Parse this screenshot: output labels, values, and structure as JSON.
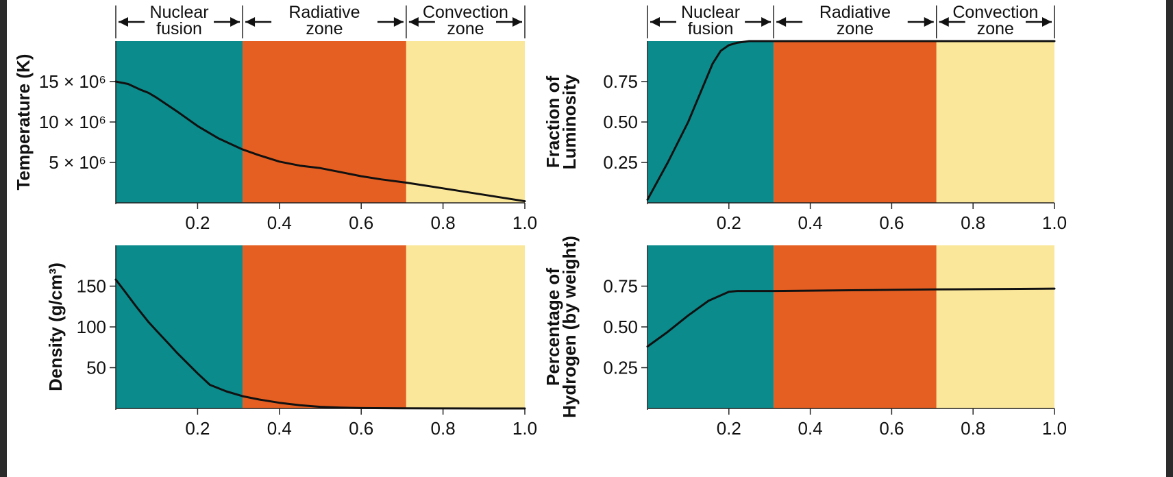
{
  "zones": {
    "labels": [
      [
        "Nuclear",
        "fusion"
      ],
      [
        "Radiative",
        "zone"
      ],
      [
        "Convection",
        "zone"
      ]
    ],
    "boundaries": [
      0,
      0.31,
      0.71,
      1.0
    ],
    "colors": [
      "#0b8b8c",
      "#e55f22",
      "#fbe79a"
    ]
  },
  "chart_data": [
    {
      "id": "temperature",
      "type": "line",
      "ylabel": [
        "Temperature (K)"
      ],
      "xlim": [
        0,
        1.0
      ],
      "ylim": [
        0,
        20000000
      ],
      "xticks": [
        0.2,
        0.4,
        0.6,
        0.8,
        1.0
      ],
      "xtick_labels": [
        "0.2",
        "0.4",
        "0.6",
        "0.8",
        "1.0"
      ],
      "yticks": [
        5000000,
        10000000,
        15000000
      ],
      "ytick_labels": [
        "5 × 10⁶",
        "10 × 10⁶",
        "15 × 10⁶"
      ],
      "x": [
        0,
        0.03,
        0.06,
        0.08,
        0.1,
        0.15,
        0.2,
        0.25,
        0.31,
        0.35,
        0.4,
        0.45,
        0.5,
        0.55,
        0.6,
        0.65,
        0.71,
        0.8,
        0.9,
        1.0
      ],
      "y": [
        15000000,
        14700000,
        14000000,
        13600000,
        13000000,
        11300000,
        9500000,
        8000000,
        6600000,
        5900000,
        5100000,
        4600000,
        4300000,
        3800000,
        3300000,
        2900000,
        2500000,
        1800000,
        1000000,
        200000
      ]
    },
    {
      "id": "luminosity",
      "type": "line",
      "ylabel": [
        "Fraction of",
        "Luminosity"
      ],
      "xlim": [
        0,
        1.0
      ],
      "ylim": [
        0,
        1.0
      ],
      "xticks": [
        0.2,
        0.4,
        0.6,
        0.8,
        1.0
      ],
      "xtick_labels": [
        "0.2",
        "0.4",
        "0.6",
        "0.8",
        "1.0"
      ],
      "yticks": [
        0.25,
        0.5,
        0.75
      ],
      "ytick_labels": [
        "0.25",
        "0.50",
        "0.75"
      ],
      "x": [
        0,
        0.05,
        0.1,
        0.13,
        0.16,
        0.18,
        0.2,
        0.22,
        0.25,
        0.31,
        0.5,
        0.71,
        1.0
      ],
      "y": [
        0.02,
        0.25,
        0.5,
        0.68,
        0.86,
        0.94,
        0.975,
        0.99,
        1.0,
        1.0,
        1.0,
        1.0,
        1.0
      ]
    },
    {
      "id": "density",
      "type": "line",
      "ylabel": [
        "Density (g/cm³)"
      ],
      "xlim": [
        0,
        1.0
      ],
      "ylim": [
        0,
        200
      ],
      "xticks": [
        0.2,
        0.4,
        0.6,
        0.8,
        1.0
      ],
      "xtick_labels": [
        "0.2",
        "0.4",
        "0.6",
        "0.8",
        "1.0"
      ],
      "yticks": [
        50,
        100,
        150
      ],
      "ytick_labels": [
        "50",
        "100",
        "150"
      ],
      "x": [
        0,
        0.02,
        0.05,
        0.08,
        0.1,
        0.13,
        0.15,
        0.18,
        0.2,
        0.23,
        0.27,
        0.31,
        0.35,
        0.4,
        0.45,
        0.5,
        0.55,
        0.6,
        0.7,
        0.8,
        0.9,
        1.0
      ],
      "y": [
        158,
        145,
        125,
        106,
        95,
        79,
        68,
        53,
        43,
        29,
        21,
        15,
        11,
        7,
        4,
        2,
        1,
        0.5,
        0.2,
        0.1,
        0,
        0
      ]
    },
    {
      "id": "hydrogen",
      "type": "line",
      "ylabel": [
        "Percentage of",
        "Hydrogen (by weight)"
      ],
      "xlim": [
        0,
        1.0
      ],
      "ylim": [
        0,
        1.0
      ],
      "xticks": [
        0.2,
        0.4,
        0.6,
        0.8,
        1.0
      ],
      "xtick_labels": [
        "0.2",
        "0.4",
        "0.6",
        "0.8",
        "1.0"
      ],
      "yticks": [
        0.25,
        0.5,
        0.75
      ],
      "ytick_labels": [
        "0.25",
        "0.50",
        "0.75"
      ],
      "x": [
        0,
        0.05,
        0.1,
        0.15,
        0.2,
        0.22,
        0.25,
        0.31,
        0.5,
        0.71,
        1.0
      ],
      "y": [
        0.38,
        0.47,
        0.57,
        0.66,
        0.715,
        0.72,
        0.72,
        0.72,
        0.725,
        0.73,
        0.735
      ]
    }
  ]
}
